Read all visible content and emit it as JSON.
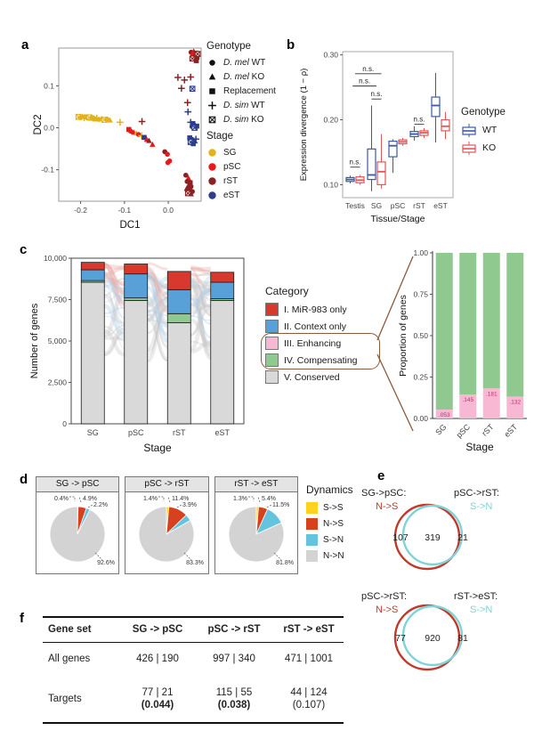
{
  "panel_labels": {
    "a": "a",
    "b": "b",
    "c": "c",
    "d": "d",
    "e": "e",
    "f": "f"
  },
  "colors": {
    "stage": {
      "SG": "#E2B21C",
      "pSC": "#E41A1C",
      "rST": "#8B2222",
      "eST": "#2C3E8C"
    },
    "genotype_box": {
      "WT": "#3B5BA5",
      "KO": "#E15656"
    },
    "category": {
      "mir983": "#D8392C",
      "context": "#58A1D8",
      "enhancing": "#F8B8D4",
      "compensating": "#8FC98F",
      "conserved": "#D9D9D9"
    },
    "dynamics": {
      "S_S": "#FFD21F",
      "N_S": "#D7411E",
      "S_N": "#66C3DE",
      "N_N": "#D3D3D3"
    },
    "venn": {
      "left": "#C0392B",
      "right": "#7FD3D6"
    },
    "callout": "#8a5a3b",
    "prop_label": "#b3326b"
  },
  "panel_a": {
    "legend_genotype_title": "Genotype",
    "legend_genotype_items": [
      {
        "shape": "circle",
        "italic": "D. mel",
        "rest": " WT"
      },
      {
        "shape": "triangle",
        "italic": "D. mel",
        "rest": " KO"
      },
      {
        "shape": "square",
        "italic": "",
        "rest": "Replacement"
      },
      {
        "shape": "plus",
        "italic": "D. sim",
        "rest": " WT"
      },
      {
        "shape": "xsquare",
        "italic": "D. sim",
        "rest": " KO"
      }
    ],
    "legend_stage_title": "Stage",
    "legend_stage_items": [
      {
        "stage": "SG",
        "label": "SG"
      },
      {
        "stage": "pSC",
        "label": "pSC"
      },
      {
        "stage": "rST",
        "label": "rST"
      },
      {
        "stage": "eST",
        "label": "eST"
      }
    ]
  },
  "panel_b": {
    "legend_title": "Genotype",
    "legend_items": [
      {
        "name": "WT"
      },
      {
        "name": "KO"
      }
    ]
  },
  "panel_c": {
    "legend_title": "Category",
    "legend_items": [
      {
        "key": "mir983",
        "label": "I. MiR-983 only"
      },
      {
        "key": "context",
        "label": "II. Context only"
      },
      {
        "key": "enhancing",
        "label": "III. Enhancing"
      },
      {
        "key": "compensating",
        "label": "IV. Compensating"
      },
      {
        "key": "conserved",
        "label": "V. Conserved"
      }
    ]
  },
  "panel_d": {
    "legend_title": "Dynamics",
    "legend_items": [
      {
        "key": "S_S",
        "label": "S->S"
      },
      {
        "key": "N_S",
        "label": "N->S"
      },
      {
        "key": "S_N",
        "label": "S->N"
      },
      {
        "key": "N_N",
        "label": "N->N"
      }
    ]
  },
  "chart_data": [
    {
      "id": "dc_scatter",
      "type": "scatter",
      "xlabel": "DC1",
      "ylabel": "DC2",
      "xlim": [
        -0.25,
        0.075
      ],
      "ylim": [
        -0.175,
        0.19
      ],
      "xticks": [
        -0.2,
        -0.1,
        0.0
      ],
      "yticks": [
        -0.1,
        0.0,
        0.1
      ],
      "points": [
        [
          -0.205,
          0.026,
          "SG",
          "xsquare"
        ],
        [
          -0.2,
          0.024,
          "SG",
          "circle"
        ],
        [
          -0.196,
          0.027,
          "SG",
          "triangle"
        ],
        [
          -0.192,
          0.024,
          "SG",
          "plus"
        ],
        [
          -0.188,
          0.026,
          "SG",
          "square"
        ],
        [
          -0.184,
          0.023,
          "SG",
          "circle"
        ],
        [
          -0.18,
          0.025,
          "SG",
          "xsquare"
        ],
        [
          -0.176,
          0.022,
          "SG",
          "triangle"
        ],
        [
          -0.172,
          0.024,
          "SG",
          "circle"
        ],
        [
          -0.168,
          0.021,
          "SG",
          "square"
        ],
        [
          -0.163,
          0.023,
          "SG",
          "plus"
        ],
        [
          -0.158,
          0.02,
          "SG",
          "circle"
        ],
        [
          -0.152,
          0.022,
          "SG",
          "triangle"
        ],
        [
          -0.146,
          0.019,
          "SG",
          "xsquare"
        ],
        [
          -0.14,
          0.021,
          "SG",
          "circle"
        ],
        [
          -0.133,
          0.018,
          "SG",
          "triangle"
        ],
        [
          -0.11,
          0.013,
          "SG",
          "plus"
        ],
        [
          -0.06,
          0.015,
          "rST",
          "plus"
        ],
        [
          -0.09,
          -0.004,
          "pSC",
          "square"
        ],
        [
          -0.086,
          -0.008,
          "pSC",
          "circle"
        ],
        [
          -0.079,
          -0.011,
          "pSC",
          "triangle"
        ],
        [
          -0.073,
          -0.013,
          "SG",
          "triangle"
        ],
        [
          -0.068,
          -0.016,
          "pSC",
          "circle"
        ],
        [
          -0.061,
          -0.019,
          "SG",
          "plus"
        ],
        [
          -0.055,
          -0.023,
          "eST",
          "square"
        ],
        [
          -0.049,
          -0.028,
          "pSC",
          "triangle"
        ],
        [
          -0.044,
          -0.031,
          "rST",
          "triangle"
        ],
        [
          -0.036,
          -0.04,
          "pSC",
          "triangle"
        ],
        [
          -0.008,
          -0.057,
          "rST",
          "circle"
        ],
        [
          -0.002,
          -0.063,
          "pSC",
          "circle"
        ],
        [
          0.003,
          -0.079,
          "pSC",
          "circle"
        ],
        [
          -0.001,
          -0.083,
          "pSC",
          "circle"
        ],
        [
          0.04,
          -0.113,
          "rST",
          "circle"
        ],
        [
          0.046,
          -0.12,
          "pSC",
          "triangle"
        ],
        [
          0.043,
          -0.128,
          "rST",
          "circle"
        ],
        [
          0.05,
          -0.131,
          "rST",
          "square"
        ],
        [
          0.046,
          -0.138,
          "rST",
          "triangle"
        ],
        [
          0.052,
          -0.14,
          "rST",
          "circle"
        ],
        [
          0.042,
          -0.145,
          "rST",
          "triangle"
        ],
        [
          0.049,
          -0.149,
          "rST",
          "square"
        ],
        [
          0.055,
          -0.152,
          "rST",
          "circle"
        ],
        [
          0.045,
          -0.156,
          "rST",
          "xsquare"
        ],
        [
          0.052,
          -0.158,
          "rST",
          "triangle"
        ],
        [
          0.052,
          0.18,
          "rST",
          "circle"
        ],
        [
          0.058,
          0.182,
          "pSC",
          "triangle"
        ],
        [
          0.063,
          0.178,
          "rST",
          "square"
        ],
        [
          0.056,
          0.174,
          "pSC",
          "circle"
        ],
        [
          0.062,
          0.172,
          "rST",
          "plus"
        ],
        [
          0.067,
          0.176,
          "rST",
          "xsquare"
        ],
        [
          0.06,
          0.168,
          "rST",
          "triangle"
        ],
        [
          0.066,
          0.166,
          "rST",
          "circle"
        ],
        [
          0.055,
          0.165,
          "rST",
          "xsquare"
        ],
        [
          0.064,
          0.16,
          "rST",
          "square"
        ],
        [
          0.022,
          0.12,
          "rST",
          "plus"
        ],
        [
          0.037,
          0.114,
          "rST",
          "plus"
        ],
        [
          0.051,
          0.121,
          "rST",
          "plus"
        ],
        [
          0.03,
          0.094,
          "rST",
          "plus"
        ],
        [
          0.055,
          0.093,
          "eST",
          "xsquare"
        ],
        [
          0.044,
          0.06,
          "rST",
          "plus"
        ],
        [
          0.045,
          0.038,
          "eST",
          "plus"
        ],
        [
          0.051,
          0.013,
          "eST",
          "plus"
        ],
        [
          0.056,
          0.01,
          "eST",
          "square"
        ],
        [
          0.061,
          0.007,
          "eST",
          "triangle"
        ],
        [
          0.054,
          0.003,
          "eST",
          "circle"
        ],
        [
          0.06,
          0.0,
          "eST",
          "xsquare"
        ],
        [
          0.065,
          0.004,
          "eST",
          "square"
        ],
        [
          0.049,
          -0.024,
          "eST",
          "square"
        ],
        [
          0.055,
          -0.028,
          "eST",
          "circle"
        ],
        [
          0.061,
          -0.032,
          "eST",
          "triangle"
        ],
        [
          0.051,
          -0.034,
          "eST",
          "xsquare"
        ],
        [
          0.057,
          -0.038,
          "eST",
          "square"
        ],
        [
          0.063,
          -0.027,
          "eST",
          "plus"
        ]
      ]
    },
    {
      "id": "expr_divergence",
      "type": "box",
      "ylabel": "Expression divergence (1 − ρ)",
      "xlabel": "Tissue/Stage",
      "categories": [
        "Testis",
        "SG",
        "pSC",
        "rST",
        "eST"
      ],
      "ylim": [
        0.08,
        0.305
      ],
      "yticks": [
        "0.10",
        "0.20",
        "0.30"
      ],
      "series": [
        {
          "name": "WT",
          "boxes": [
            [
              0.102,
              0.105,
              0.108,
              0.111,
              0.114
            ],
            [
              0.09,
              0.108,
              0.115,
              0.155,
              0.222
            ],
            [
              0.118,
              0.143,
              0.16,
              0.167,
              0.17
            ],
            [
              0.168,
              0.174,
              0.178,
              0.182,
              0.19
            ],
            [
              0.165,
              0.205,
              0.222,
              0.235,
              0.272
            ]
          ]
        },
        {
          "name": "KO",
          "boxes": [
            [
              0.1,
              0.103,
              0.107,
              0.112,
              0.115
            ],
            [
              0.094,
              0.1,
              0.12,
              0.135,
              0.178
            ],
            [
              0.16,
              0.163,
              0.166,
              0.169,
              0.172
            ],
            [
              0.172,
              0.176,
              0.18,
              0.183,
              0.187
            ],
            [
              0.17,
              0.183,
              0.19,
              0.2,
              0.212
            ]
          ]
        }
      ],
      "annotations": [
        {
          "text": "n.s.",
          "g1": 0,
          "s1": -1,
          "g2": 0,
          "s2": 1,
          "y": 0.127
        },
        {
          "text": "n.s.",
          "g1": 1,
          "s1": 1,
          "g2": 1,
          "s2": -1,
          "y": 0.232
        },
        {
          "text": "n.s.",
          "g1": 0,
          "s1": -0.5,
          "g2": 1,
          "s2": 0,
          "y": 0.252
        },
        {
          "text": "n.s.",
          "g1": 0,
          "s1": 0,
          "g2": 1,
          "s2": 1,
          "y": 0.271
        },
        {
          "text": "n.s.",
          "g1": 3,
          "s1": -1,
          "g2": 3,
          "s2": 1,
          "y": 0.193
        }
      ]
    },
    {
      "id": "gene_numbers",
      "type": "bar",
      "stacked": true,
      "ylabel": "Number of genes",
      "xlabel": "Stage",
      "categories": [
        "SG",
        "pSC",
        "rST",
        "eST"
      ],
      "ylim": [
        0,
        10000
      ],
      "yticks": [
        {
          "v": 0,
          "label": "0"
        },
        {
          "v": 2500,
          "label": "2,500"
        },
        {
          "v": 5000,
          "label": "5,000"
        },
        {
          "v": 7500,
          "label": "7,500"
        },
        {
          "v": 10000,
          "label": "10,000"
        }
      ],
      "series": [
        {
          "name": "V. Conserved",
          "key": "conserved",
          "values": [
            8550,
            7450,
            6100,
            7450
          ]
        },
        {
          "name": "IV. Compensating",
          "key": "compensating",
          "values": [
            100,
            150,
            550,
            100
          ]
        },
        {
          "name": "III. Enhancing",
          "key": "enhancing",
          "values": [
            0,
            0,
            0,
            0
          ]
        },
        {
          "name": "II. Context only",
          "key": "context",
          "values": [
            650,
            1450,
            1450,
            1000
          ]
        },
        {
          "name": "I. MiR-983 only",
          "key": "mir983",
          "values": [
            450,
            600,
            1100,
            600
          ]
        }
      ]
    },
    {
      "id": "modulated_proportion",
      "type": "bar",
      "stacked": true,
      "ylabel": "Proportion of genes",
      "xlabel": "Stage",
      "categories": [
        "SG",
        "pSC",
        "rST",
        "eST"
      ],
      "ylim": [
        0,
        1
      ],
      "yticks": [
        {
          "v": 0,
          "label": "0.00"
        },
        {
          "v": 0.25,
          "label": "0.25"
        },
        {
          "v": 0.5,
          "label": "0.50"
        },
        {
          "v": 0.75,
          "label": "0.75"
        },
        {
          "v": 1,
          "label": "1.00"
        }
      ],
      "series": [
        {
          "name": "III. Enhancing",
          "key": "enhancing",
          "values": [
            0.053,
            0.145,
            0.181,
            0.132
          ],
          "labels": [
            ".053",
            ".145",
            ".181",
            ".132"
          ]
        },
        {
          "name": "IV. Compensating",
          "key": "compensating",
          "values": [
            0.947,
            0.855,
            0.819,
            0.868
          ]
        }
      ]
    },
    {
      "id": "pie_sg_psc",
      "type": "pie",
      "title": "SG -> pSC",
      "labels": [
        "S->S",
        "N->S",
        "S->N",
        "N->N"
      ],
      "values": [
        0.4,
        4.9,
        2.2,
        92.6
      ],
      "display": [
        "0.4%",
        "4.9%",
        "2.2%",
        "92.6%"
      ]
    },
    {
      "id": "pie_psc_rst",
      "type": "pie",
      "title": "pSC -> rST",
      "labels": [
        "S->S",
        "N->S",
        "S->N",
        "N->N"
      ],
      "values": [
        1.4,
        11.4,
        3.9,
        83.3
      ],
      "display": [
        "1.4%",
        "11.4%",
        "3.9%",
        "83.3%"
      ]
    },
    {
      "id": "pie_rst_est",
      "type": "pie",
      "title": "rST -> eST",
      "labels": [
        "S->S",
        "N->S",
        "S->N",
        "N->N"
      ],
      "values": [
        1.3,
        5.4,
        11.5,
        81.8
      ],
      "display": [
        "1.3%",
        "5.4%",
        "11.5%",
        "81.8%"
      ]
    },
    {
      "id": "venn1",
      "type": "venn",
      "left_title": "SG->pSC:",
      "left_sub": "N->S",
      "right_title": "pSC->rST:",
      "right_sub": "S->N",
      "left_only": "107",
      "overlap": "319",
      "right_only": "21"
    },
    {
      "id": "venn2",
      "type": "venn",
      "left_title": "pSC->rST:",
      "left_sub": "N->S",
      "right_title": "rST->eST:",
      "right_sub": "S->N",
      "left_only": "77",
      "overlap": "920",
      "right_only": "81"
    },
    {
      "id": "summary_table",
      "type": "table",
      "columns": [
        "Gene set",
        "SG -> pSC",
        "pSC -> rST",
        "rST -> eST"
      ],
      "rows": [
        {
          "label": "All genes",
          "cells": [
            {
              "main": "426 | 190",
              "sub": "",
              "bold": false
            },
            {
              "main": "997 | 340",
              "sub": "",
              "bold": false
            },
            {
              "main": "471 | 1001",
              "sub": "",
              "bold": false
            }
          ]
        },
        {
          "label": "Targets",
          "cells": [
            {
              "main": "77 | 21",
              "sub": "(0.044)",
              "bold": true
            },
            {
              "main": "115 | 55",
              "sub": "(0.038)",
              "bold": true
            },
            {
              "main": "44 | 124",
              "sub": "(0.107)",
              "bold": false
            }
          ]
        }
      ]
    }
  ]
}
